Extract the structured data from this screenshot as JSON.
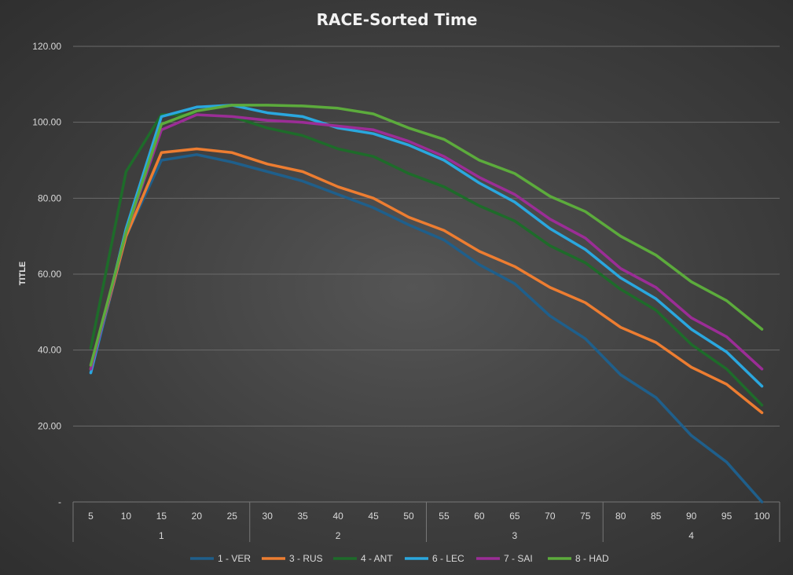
{
  "chart_data": {
    "type": "line",
    "title": "RACE-Sorted Time",
    "ylabel": "TITLE",
    "xlabel": "",
    "ylim": [
      0,
      120
    ],
    "y_ticks": [
      "-",
      "20.00",
      "40.00",
      "60.00",
      "80.00",
      "100.00",
      "120.00"
    ],
    "y_tick_values": [
      0,
      20,
      40,
      60,
      80,
      100,
      120
    ],
    "categories": [
      "5",
      "10",
      "15",
      "20",
      "25",
      "30",
      "35",
      "40",
      "45",
      "50",
      "55",
      "60",
      "65",
      "70",
      "75",
      "80",
      "85",
      "90",
      "95",
      "100"
    ],
    "groups": [
      {
        "label": "1",
        "count": 5
      },
      {
        "label": "2",
        "count": 5
      },
      {
        "label": "3",
        "count": 5
      },
      {
        "label": "4",
        "count": 5
      }
    ],
    "grid": true,
    "legend_position": "bottom",
    "series": [
      {
        "name": "1 - VER",
        "color": "#1f5f8b",
        "values": [
          34,
          70,
          90,
          91.5,
          89.5,
          87,
          84.5,
          81,
          77.5,
          73,
          69,
          62.5,
          57.5,
          49,
          43,
          33.5,
          27.5,
          17.5,
          10.5,
          0
        ]
      },
      {
        "name": "3 - RUS",
        "color": "#ed7d31",
        "values": [
          35,
          70,
          92,
          93,
          92,
          89,
          87,
          83,
          80,
          75,
          71.5,
          66,
          62,
          56.5,
          52.5,
          46,
          42,
          35.5,
          31,
          23.5
        ]
      },
      {
        "name": "4 - ANT",
        "color": "#1e6b2a",
        "values": [
          40.5,
          87,
          102,
          102,
          101.5,
          98.5,
          96.5,
          93,
          91,
          86.5,
          83,
          78,
          74,
          67.5,
          63,
          56,
          50.5,
          41.5,
          35,
          25.5
        ]
      },
      {
        "name": "6 - LEC",
        "color": "#2aa7de",
        "values": [
          34,
          72,
          101.5,
          104,
          104.5,
          102.5,
          101.5,
          98.5,
          97,
          94,
          90,
          84,
          79,
          72,
          66.5,
          59,
          53.5,
          45.5,
          39.5,
          30.5
        ]
      },
      {
        "name": "7 - SAI",
        "color": "#9b2d96",
        "values": [
          35,
          71,
          98,
          102,
          101.5,
          100.5,
          100,
          99,
          98,
          95,
          91,
          85.5,
          81,
          74.5,
          69.5,
          61.5,
          56.5,
          48.5,
          43.5,
          35
        ]
      },
      {
        "name": "8 - HAD",
        "color": "#5cab3c",
        "values": [
          36,
          71,
          99.5,
          103,
          104.5,
          104.5,
          104.3,
          103.7,
          102.2,
          98.5,
          95.5,
          90,
          86.5,
          80.5,
          76.5,
          70,
          65,
          58,
          53,
          45.5
        ]
      }
    ]
  }
}
